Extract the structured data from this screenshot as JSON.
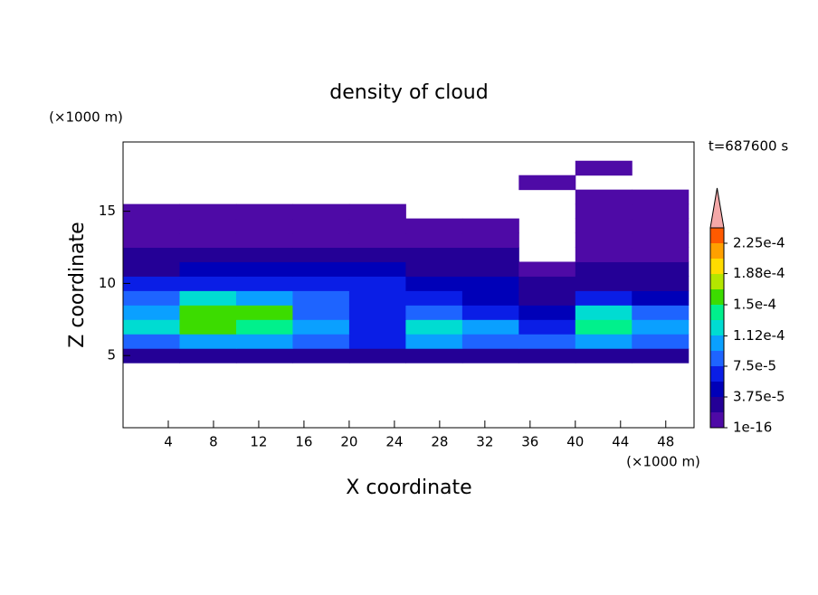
{
  "chart_data": {
    "type": "contour",
    "title": "density of cloud",
    "x_label": "X coordinate",
    "y_label": "Z coordinate",
    "x_unit": "(×1000 m)",
    "y_unit": "(×1000 m)",
    "annotation": "t=687600 s",
    "xlim": [
      0,
      50.5
    ],
    "ylim": [
      0,
      19.8
    ],
    "xticks": [
      4,
      8,
      12,
      16,
      20,
      24,
      28,
      32,
      36,
      40,
      44,
      48
    ],
    "yticks": [
      5,
      10,
      15
    ],
    "x": [
      2.5,
      7.5,
      12.5,
      17.5,
      22.5,
      27.5,
      32.5,
      37.5,
      42.5,
      47.5
    ],
    "z": [
      5,
      6,
      7,
      8,
      9,
      10,
      11,
      12,
      13,
      14,
      15,
      16,
      17,
      18
    ],
    "values": [
      [
        2e-05,
        2e-05,
        2e-05,
        2e-05,
        2e-05,
        2e-05,
        2e-05,
        2e-05,
        2e-05,
        2e-05
      ],
      [
        9e-05,
        0.00011,
        0.00011,
        9e-05,
        7e-05,
        0.0001,
        9e-05,
        8e-05,
        0.00011,
        8e-05
      ],
      [
        0.00012,
        0.00015,
        0.00014,
        0.0001,
        6e-05,
        0.00013,
        0.00011,
        7e-05,
        0.00014,
        0.0001
      ],
      [
        0.0001,
        0.00016,
        0.00015,
        9e-05,
        6e-05,
        8e-05,
        7e-05,
        5e-05,
        0.00013,
        8e-05
      ],
      [
        8e-05,
        0.00012,
        0.00011,
        8e-05,
        6e-05,
        6e-05,
        5e-05,
        3e-05,
        6e-05,
        5e-05
      ],
      [
        6e-05,
        7e-05,
        7e-05,
        7e-05,
        6e-05,
        5e-05,
        4e-05,
        2e-05,
        3e-05,
        3e-05
      ],
      [
        3e-05,
        4e-05,
        4e-05,
        5e-05,
        4e-05,
        3e-05,
        3e-05,
        1e-05,
        2e-05,
        2e-05
      ],
      [
        2e-05,
        2e-05,
        3e-05,
        3e-05,
        3e-05,
        2e-05,
        2e-05,
        null,
        1e-05,
        1e-05
      ],
      [
        1e-05,
        1e-05,
        1e-05,
        1e-05,
        1e-05,
        1e-05,
        1e-05,
        null,
        1e-05,
        1e-05
      ],
      [
        1e-05,
        1e-05,
        1e-05,
        1e-05,
        1e-05,
        1e-05,
        1e-05,
        null,
        1e-05,
        1e-05
      ],
      [
        1e-05,
        1e-05,
        1e-05,
        1e-05,
        1e-05,
        null,
        null,
        null,
        1e-05,
        1e-05
      ],
      [
        null,
        null,
        null,
        null,
        null,
        null,
        null,
        null,
        1e-05,
        1e-05
      ],
      [
        null,
        null,
        null,
        null,
        null,
        null,
        null,
        1e-05,
        null,
        null
      ],
      [
        null,
        null,
        null,
        null,
        null,
        null,
        null,
        null,
        1e-05,
        null
      ]
    ],
    "levels": [
      1e-16,
      1.875e-05,
      3.75e-05,
      5.625e-05,
      7.5e-05,
      9.375e-05,
      0.0001125,
      0.00013125,
      0.00015,
      0.00016875,
      0.0001875,
      0.00020625,
      0.000225,
      0.00024375
    ],
    "colors": [
      "#4e0aa6",
      "#240096",
      "#0000b8",
      "#0a1ee6",
      "#1e64ff",
      "#0aa0ff",
      "#00dcd2",
      "#00f08c",
      "#3cdc00",
      "#b4e600",
      "#ffdc00",
      "#ffa000",
      "#ff5a00"
    ],
    "extend_color": "#f4a8a8",
    "colorbar_ticks": [
      1e-16,
      {
        "value": 3.75e-05,
        "label": "3.75e-5"
      },
      {
        "value": 7.5e-05,
        "label": "7.5e-5"
      },
      {
        "value": 0.000112,
        "label": "1.12e-4"
      },
      {
        "value": 0.00015,
        "label": "1.5e-4"
      },
      {
        "value": 0.000188,
        "label": "1.88e-4"
      },
      {
        "value": 0.000225,
        "label": "2.25e-4"
      }
    ]
  }
}
